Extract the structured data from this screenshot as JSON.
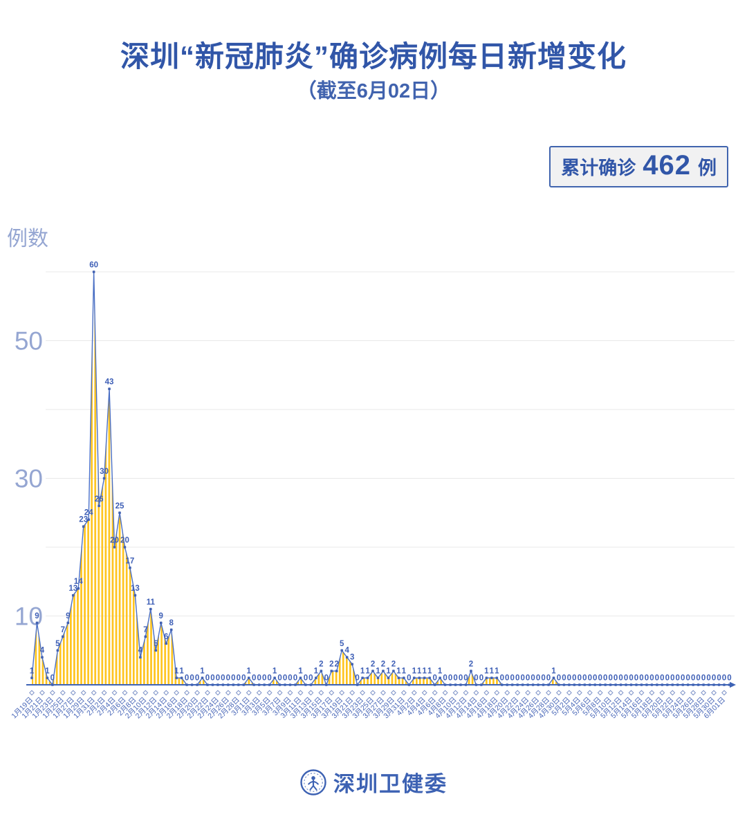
{
  "header": {
    "title": "深圳“新冠肺炎”确诊病例每日新增变化",
    "subtitle": "（截至6月02日）"
  },
  "badge": {
    "prefix": "累计确诊",
    "value": "462",
    "suffix": "例"
  },
  "chart_data": {
    "type": "area",
    "title": "深圳“新冠肺炎”确诊病例每日新增变化",
    "subtitle": "（截至6月02日）",
    "ylabel": "例数",
    "xlabel": "",
    "ylim": [
      0,
      62
    ],
    "y_ticks": [
      10,
      30,
      50
    ],
    "gridline_values": [
      10,
      20,
      30,
      40,
      50,
      60
    ],
    "grid": true,
    "legend_position": "none",
    "point_labels_visible": true,
    "x_tick_labels": [
      "1月19日",
      "1月21日",
      "1月23日",
      "1月25日",
      "1月27日",
      "1月29日",
      "1月31日",
      "2月2日",
      "2月4日",
      "2月6日",
      "2月8日",
      "2月10日",
      "2月12日",
      "2月14日",
      "2月16日",
      "2月18日",
      "2月20日",
      "2月22日",
      "2月24日",
      "2月26日",
      "2月28日",
      "3月1日",
      "3月3日",
      "3月5日",
      "3月7日",
      "3月9日",
      "3月11日",
      "3月13日",
      "3月15日",
      "3月17日",
      "3月19日",
      "3月21日",
      "3月23日",
      "3月25日",
      "3月27日",
      "3月29日",
      "3月31日",
      "4月2日",
      "4月4日",
      "4月6日",
      "4月8日",
      "4月10日",
      "4月12日",
      "4月14日",
      "4月16日",
      "4月18日",
      "4月20日",
      "4月22日",
      "4月24日",
      "4月26日",
      "4月28日",
      "4月30日",
      "5月2日",
      "5月4日",
      "5月6日",
      "5月8日",
      "5月10日",
      "5月12日",
      "5月14日",
      "5月16日",
      "5月18日",
      "5月20日",
      "5月22日",
      "5月24日",
      "5月26日",
      "5月28日",
      "5月30日",
      "6月01日"
    ],
    "values": [
      1,
      9,
      4,
      1,
      0,
      5,
      7,
      9,
      13,
      14,
      23,
      24,
      60,
      26,
      30,
      43,
      20,
      25,
      20,
      17,
      13,
      4,
      7,
      11,
      5,
      9,
      6,
      8,
      1,
      1,
      0,
      0,
      0,
      1,
      0,
      0,
      0,
      0,
      0,
      0,
      0,
      0,
      1,
      0,
      0,
      0,
      0,
      1,
      0,
      0,
      0,
      0,
      1,
      0,
      0,
      1,
      2,
      0,
      2,
      2,
      5,
      4,
      3,
      0,
      1,
      1,
      2,
      1,
      2,
      1,
      2,
      1,
      1,
      0,
      1,
      1,
      1,
      1,
      0,
      1,
      0,
      0,
      0,
      0,
      0,
      2,
      0,
      0,
      1,
      1,
      1,
      0,
      0,
      0,
      0,
      0,
      0,
      0,
      0,
      0,
      0,
      1,
      0,
      0,
      0,
      0,
      0,
      0,
      0,
      0,
      0,
      0,
      0,
      0,
      0,
      0,
      0,
      0,
      0,
      0,
      0,
      0,
      0,
      0,
      0,
      0,
      0,
      0,
      0,
      0,
      0,
      0,
      0,
      0,
      0,
      0
    ],
    "colors": {
      "area_fill_stripe": "#FFC41E",
      "line": "#4A6FC4",
      "dot": "#4161B2",
      "value_label": "#3E5FB6",
      "axis_line": "#3E63B5",
      "date_label": "#4A68B8",
      "gridline": "#E8E8E8",
      "y_tick_label": "#95A6D2",
      "tick_marker": "#7E93C8"
    }
  },
  "footer": {
    "logo_text": "深圳卫健委"
  }
}
